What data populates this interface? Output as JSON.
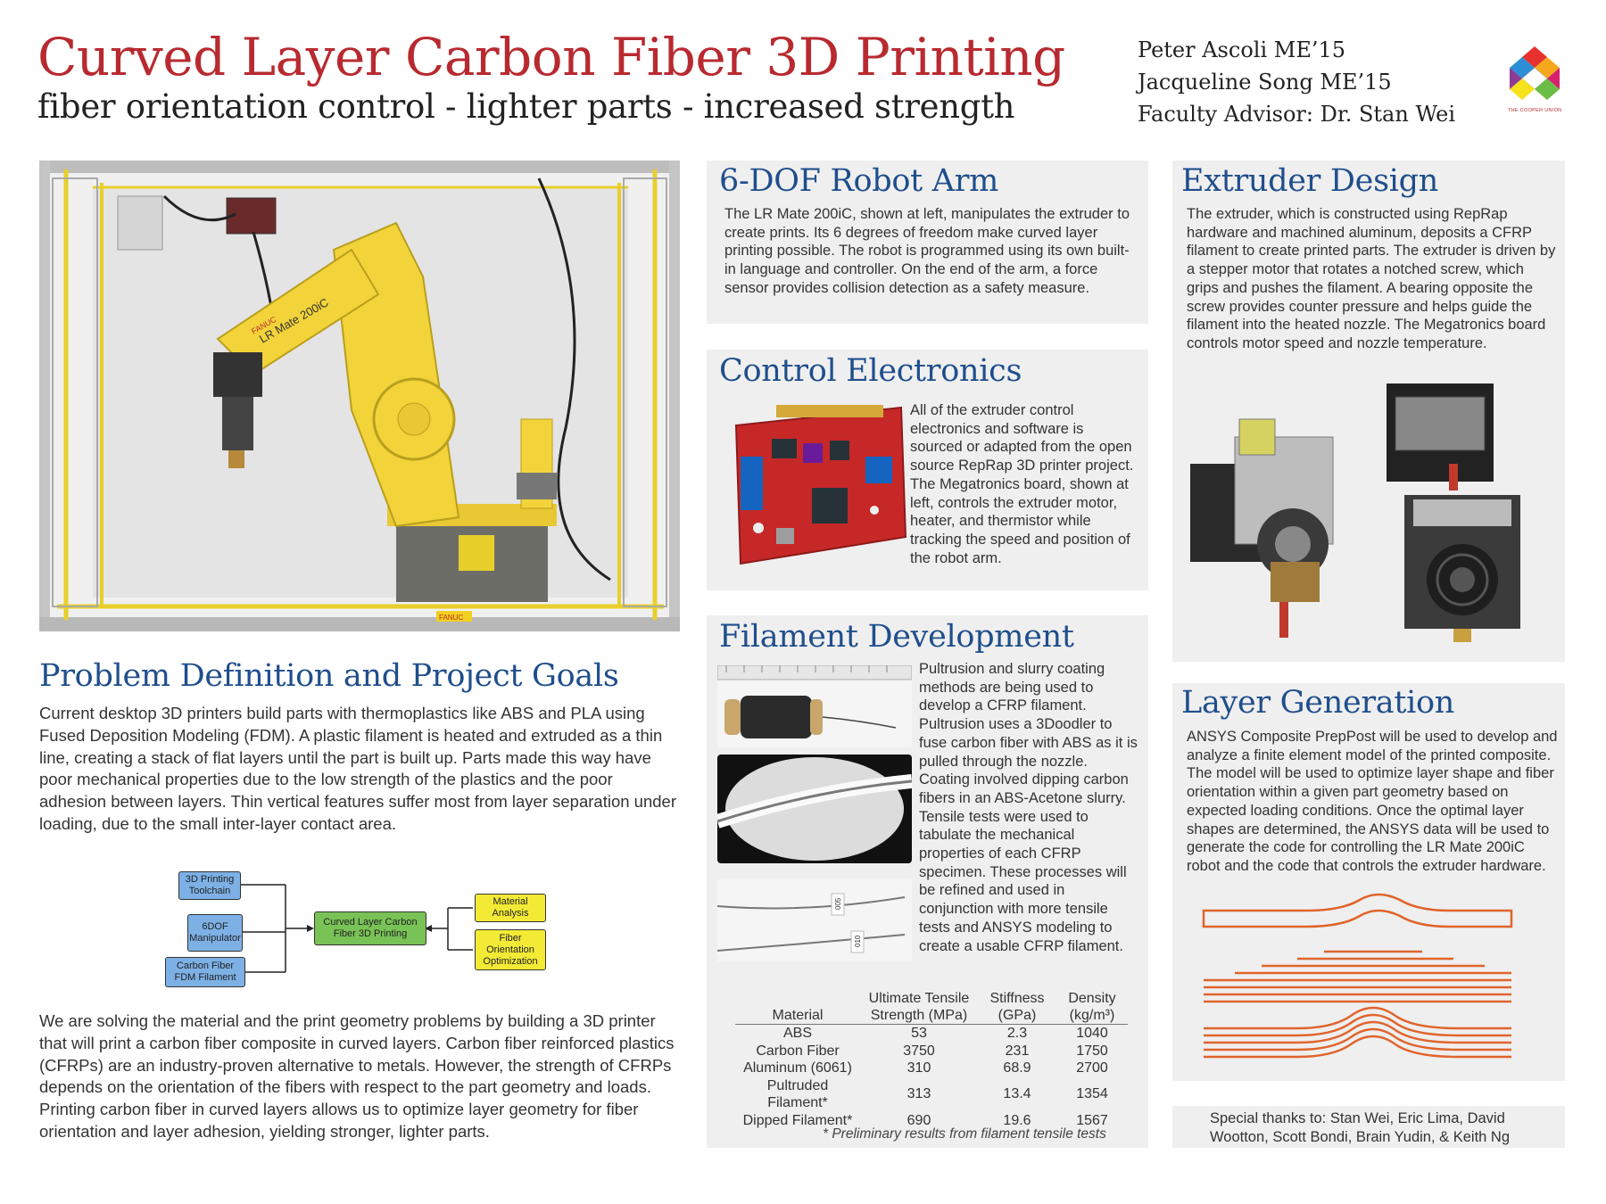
{
  "header": {
    "title": "Curved Layer Carbon Fiber 3D Printing",
    "subtitle": "fiber orientation control - lighter parts - increased strength",
    "authors": [
      "Peter Ascoli ME’15",
      "Jacqueline Song ME’15",
      "Faculty Advisor: Dr. Stan Wei"
    ],
    "logo_text": "THE COOPER UNION"
  },
  "robot_photo": {
    "arm_label": "LR Mate 200iC",
    "brand": "FANUC",
    "warning": "FANUC"
  },
  "problem": {
    "heading": "Problem Definition and Project Goals",
    "para1": "Current desktop 3D printers build parts with thermoplastics like ABS and PLA using Fused Deposition Modeling (FDM). A plastic filament is heated and extruded as a thin line, creating a stack of flat layers until the part is built up. Parts made this way have poor mechanical properties due to the low strength of the plastics and the poor adhesion between layers. Thin vertical features suffer most from layer separation under loading, due to the small inter-layer contact area.",
    "para2": "We are solving the material and the print geometry problems by building a 3D printer that will print a carbon fiber composite in curved layers. Carbon fiber reinforced plastics (CFRPs) are an industry-proven alternative to metals. However, the strength of CFRPs depends on the orientation of the fibers with respect to the part geometry and loads. Printing carbon fiber in curved layers allows us to optimize layer geometry for fiber orientation and layer adhesion, yielding stronger, lighter parts."
  },
  "flowchart": {
    "left": [
      "3D Printing Toolchain",
      "6DOF Manipulator",
      "Carbon Fiber FDM Filament"
    ],
    "center": "Curved Layer Carbon Fiber 3D Printing",
    "right": [
      "Material Analysis",
      "Fiber Orientation Optimization"
    ]
  },
  "robot_arm": {
    "heading": "6-DOF Robot Arm",
    "text": "The LR Mate 200iC, shown at left, manipulates the extruder to create prints. Its 6 degrees of freedom make curved layer printing possible. The robot is programmed using its own built-in language and controller. On the end of the arm, a force sensor provides collision detection as a safety measure."
  },
  "electronics": {
    "heading": "Control Electronics",
    "text": "All of the extruder control electronics and software is sourced or adapted from the open source RepRap 3D printer project. The Megatronics board, shown at left, controls the extruder motor, heater, and thermistor while tracking the speed and position of the robot arm."
  },
  "filament": {
    "heading": "Filament Development",
    "text": "Pultrusion and slurry coating methods are being used to develop a CFRP filament. Pultrusion uses a 3Doodler to fuse carbon fiber with ABS as it is pulled through the nozzle. Coating involved dipping carbon fibers in an ABS-Acetone slurry. Tensile tests were used to tabulate the mechanical properties of each CFRP specimen. These processes will be refined and used in conjunction with more tensile tests and ANSYS modeling to create a usable CFRP filament.",
    "specimen_labels": [
      "005",
      "010"
    ]
  },
  "table": {
    "headers": [
      "Material",
      "Ultimate Tensile Strength (MPa)",
      "Stiffness (GPa)",
      "Density (kg/m³)"
    ],
    "rows": [
      [
        "ABS",
        "53",
        "2.3",
        "1040"
      ],
      [
        "Carbon Fiber",
        "3750",
        "231",
        "1750"
      ],
      [
        "Aluminum (6061)",
        "310",
        "68.9",
        "2700"
      ],
      [
        "Pultruded Filament*",
        "313",
        "13.4",
        "1354"
      ],
      [
        "Dipped Filament*",
        "690",
        "19.6",
        "1567"
      ]
    ],
    "footnote": "* Preliminary results from filament tensile tests"
  },
  "extruder": {
    "heading": "Extruder Design",
    "text": "The extruder, which is constructed using RepRap hardware and machined aluminum, deposits a CFRP filament to create printed parts. The extruder is driven by a stepper motor that rotates a notched screw, which grips and pushes the filament. A bearing opposite the screw provides counter pressure and helps guide the filament into the heated nozzle. The Megatronics board controls motor speed and nozzle temperature."
  },
  "layers": {
    "heading": "Layer Generation",
    "text": "ANSYS Composite PrepPost will be used to develop and analyze a finite element model of the printed composite. The model will be used to optimize layer shape and fiber orientation within a given part geometry based on expected loading conditions. Once the optimal layer shapes are determined, the ANSYS data will be used to generate the code for controlling the LR Mate 200iC robot and the code that controls the extruder hardware."
  },
  "thanks": {
    "text": "Special thanks to: Stan Wei, Eric Lima, David Wootton, Scott Bondi, Brain Yudin, & Keith Ng"
  },
  "colors": {
    "title_red": "#b82a30",
    "heading_blue": "#1f4e8c",
    "panel_gray": "#efefef",
    "layer_orange": "#e0642c",
    "robot_yellow": "#f2d33a"
  }
}
